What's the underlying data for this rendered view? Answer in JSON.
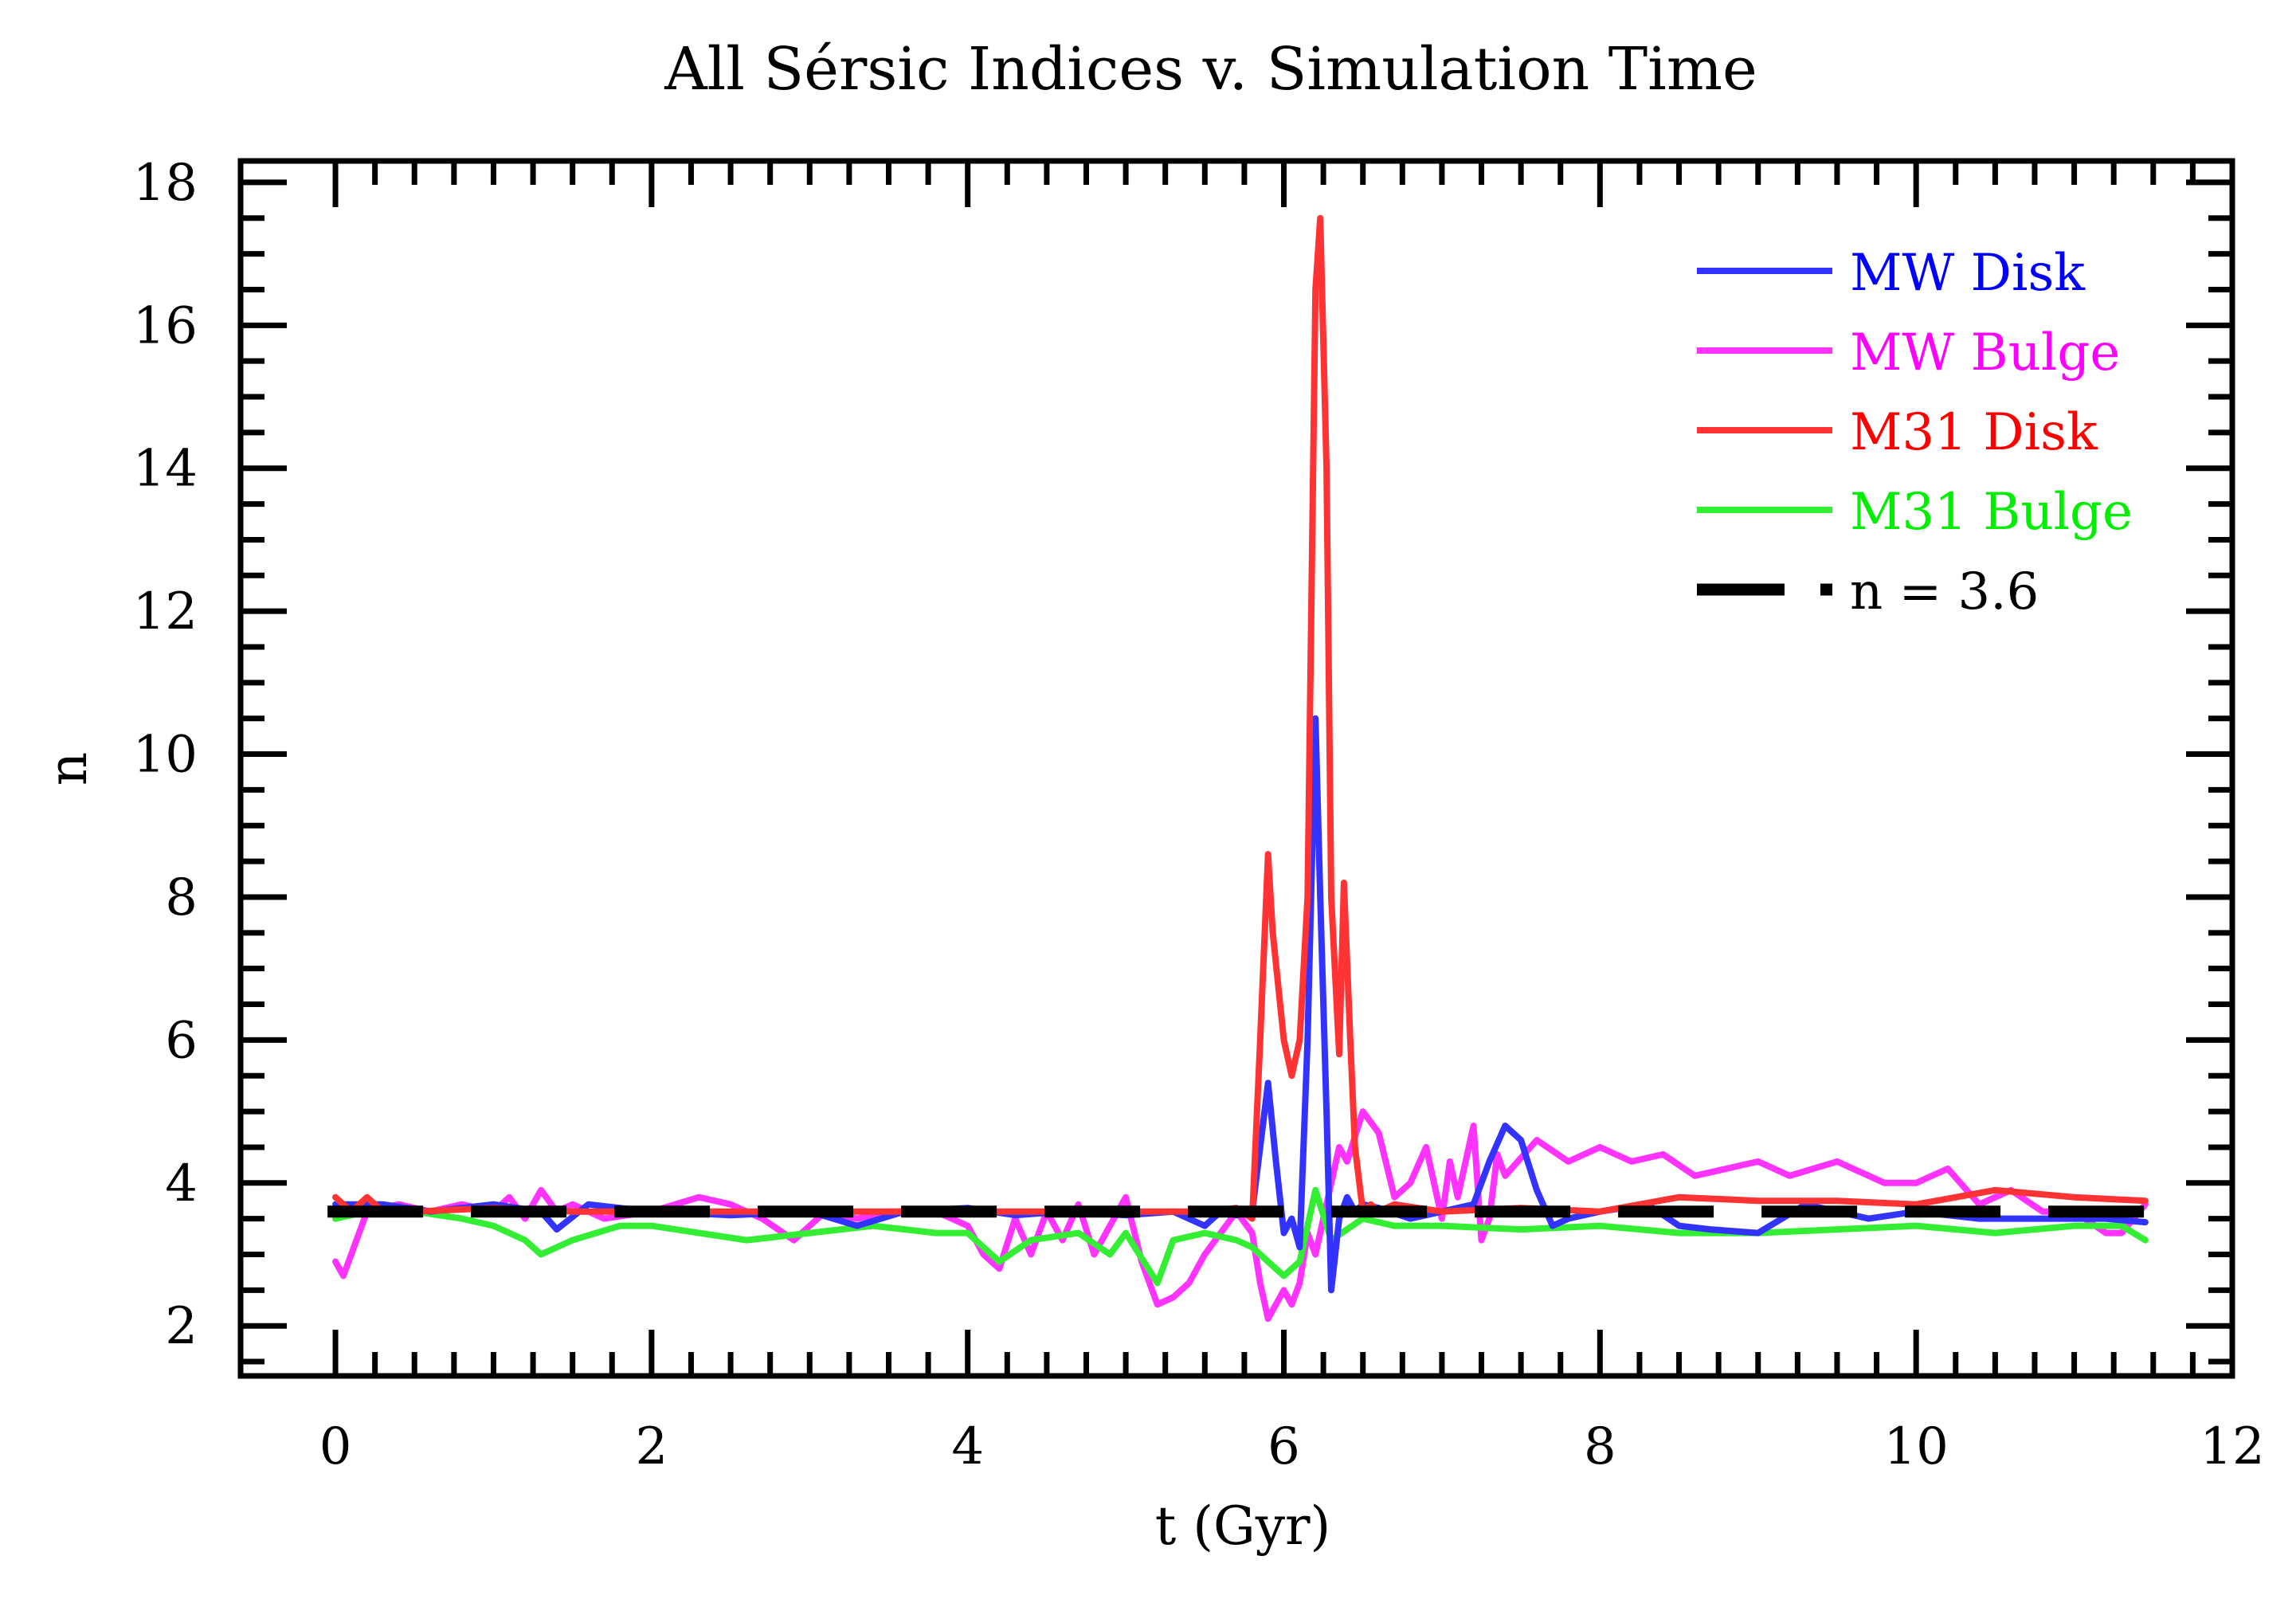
{
  "chart_data": {
    "type": "line",
    "title": "All Sérsic Indices v. Simulation Time",
    "xlabel": "t (Gyr)",
    "ylabel": "n",
    "xlim": [
      -0.6,
      12
    ],
    "ylim": [
      1.3,
      18.3
    ],
    "xticks": [
      0,
      2,
      4,
      6,
      8,
      10,
      12
    ],
    "xtick_labels": [
      "0",
      "2",
      "4",
      "6",
      "8",
      "10",
      "12"
    ],
    "yticks": [
      2,
      4,
      6,
      8,
      10,
      12,
      14,
      16,
      18
    ],
    "ytick_labels": [
      "2",
      "4",
      "6",
      "8",
      "10",
      "12",
      "14",
      "16",
      "18"
    ],
    "grid": false,
    "legend_position": "top-right",
    "series": [
      {
        "name": "MW Disk",
        "color": "#3333ff",
        "label_color": "#0000ff",
        "style": "solid",
        "x": [
          0,
          0.3,
          0.6,
          1.0,
          1.3,
          1.4,
          1.6,
          2.0,
          2.5,
          3.0,
          3.3,
          3.6,
          4.0,
          4.3,
          4.6,
          5.0,
          5.3,
          5.5,
          5.6,
          5.7,
          5.8,
          5.85,
          5.9,
          5.95,
          6.0,
          6.05,
          6.1,
          6.15,
          6.2,
          6.23,
          6.27,
          6.3,
          6.35,
          6.4,
          6.45,
          6.5,
          6.6,
          6.8,
          7.0,
          7.2,
          7.3,
          7.4,
          7.5,
          7.6,
          7.7,
          7.8,
          8.0,
          8.3,
          8.5,
          8.7,
          9.0,
          9.3,
          9.7,
          10.0,
          10.4,
          10.8,
          11.2,
          11.45
        ],
        "y": [
          3.7,
          3.7,
          3.6,
          3.7,
          3.6,
          3.35,
          3.7,
          3.6,
          3.55,
          3.6,
          3.4,
          3.6,
          3.65,
          3.55,
          3.6,
          3.55,
          3.6,
          3.4,
          3.6,
          3.55,
          3.6,
          4.5,
          5.4,
          4.3,
          3.3,
          3.5,
          3.1,
          6.0,
          10.5,
          8.0,
          5.0,
          2.5,
          3.5,
          3.8,
          3.6,
          3.7,
          3.65,
          3.5,
          3.6,
          3.7,
          4.3,
          4.8,
          4.6,
          3.9,
          3.4,
          3.5,
          3.6,
          3.7,
          3.4,
          3.35,
          3.3,
          3.7,
          3.5,
          3.6,
          3.5,
          3.5,
          3.5,
          3.45
        ]
      },
      {
        "name": "MW Bulge",
        "color": "#ff33ff",
        "label_color": "#ff00ff",
        "style": "solid",
        "x": [
          0,
          0.05,
          0.1,
          0.2,
          0.4,
          0.6,
          0.8,
          1.0,
          1.1,
          1.2,
          1.3,
          1.4,
          1.5,
          1.7,
          2.0,
          2.3,
          2.5,
          2.7,
          2.9,
          3.1,
          3.3,
          3.5,
          3.8,
          4.0,
          4.1,
          4.2,
          4.3,
          4.4,
          4.5,
          4.6,
          4.7,
          4.8,
          5.0,
          5.1,
          5.2,
          5.3,
          5.4,
          5.5,
          5.6,
          5.7,
          5.8,
          5.85,
          5.9,
          5.95,
          6.0,
          6.05,
          6.1,
          6.15,
          6.2,
          6.3,
          6.35,
          6.4,
          6.5,
          6.6,
          6.7,
          6.8,
          6.9,
          7.0,
          7.05,
          7.1,
          7.2,
          7.25,
          7.3,
          7.35,
          7.4,
          7.6,
          7.8,
          8.0,
          8.2,
          8.4,
          8.6,
          8.8,
          9.0,
          9.2,
          9.5,
          9.8,
          10.0,
          10.2,
          10.4,
          10.6,
          10.8,
          11.0,
          11.2,
          11.3,
          11.45
        ],
        "y": [
          2.9,
          2.7,
          3.0,
          3.6,
          3.7,
          3.6,
          3.7,
          3.6,
          3.8,
          3.5,
          3.9,
          3.6,
          3.7,
          3.5,
          3.6,
          3.8,
          3.7,
          3.5,
          3.2,
          3.6,
          3.5,
          3.6,
          3.6,
          3.4,
          3.0,
          2.8,
          3.5,
          3.0,
          3.6,
          3.2,
          3.7,
          3.0,
          3.8,
          2.9,
          2.3,
          2.4,
          2.6,
          3.0,
          3.3,
          3.6,
          3.3,
          2.6,
          2.1,
          2.3,
          2.5,
          2.3,
          2.6,
          3.3,
          3.0,
          4.0,
          4.5,
          4.3,
          5.0,
          4.7,
          3.8,
          4.0,
          4.5,
          3.5,
          4.3,
          3.8,
          4.8,
          3.2,
          3.5,
          4.4,
          4.1,
          4.6,
          4.3,
          4.5,
          4.3,
          4.4,
          4.1,
          4.2,
          4.3,
          4.1,
          4.3,
          4.0,
          4.0,
          4.2,
          3.7,
          3.9,
          3.6,
          3.6,
          3.3,
          3.3,
          3.7
        ]
      },
      {
        "name": "M31 Disk",
        "color": "#ff3333",
        "label_color": "#ff0000",
        "style": "solid",
        "x": [
          0,
          0.1,
          0.2,
          0.3,
          0.5,
          1.0,
          1.5,
          2.0,
          3.0,
          4.0,
          5.0,
          5.5,
          5.7,
          5.8,
          5.85,
          5.9,
          5.93,
          6.0,
          6.05,
          6.1,
          6.15,
          6.2,
          6.23,
          6.27,
          6.3,
          6.35,
          6.38,
          6.42,
          6.45,
          6.5,
          6.55,
          6.6,
          6.7,
          7.0,
          7.5,
          8.0,
          8.5,
          9.0,
          9.5,
          10.0,
          10.5,
          11.0,
          11.45
        ],
        "y": [
          3.8,
          3.6,
          3.8,
          3.6,
          3.6,
          3.65,
          3.6,
          3.6,
          3.6,
          3.6,
          3.6,
          3.6,
          3.65,
          3.5,
          6.0,
          8.6,
          7.5,
          6.0,
          5.5,
          6.0,
          8.0,
          16.5,
          17.5,
          14.0,
          8.0,
          5.8,
          8.2,
          6.0,
          4.5,
          3.6,
          3.7,
          3.6,
          3.7,
          3.6,
          3.65,
          3.6,
          3.8,
          3.75,
          3.75,
          3.7,
          3.9,
          3.8,
          3.75
        ]
      },
      {
        "name": "M31 Bulge",
        "color": "#33ee33",
        "label_color": "#00ee00",
        "style": "solid",
        "x": [
          0,
          0.2,
          0.5,
          0.8,
          1.0,
          1.2,
          1.3,
          1.5,
          1.8,
          2.0,
          2.3,
          2.6,
          3.0,
          3.4,
          3.8,
          4.0,
          4.2,
          4.4,
          4.7,
          4.9,
          5.0,
          5.2,
          5.3,
          5.5,
          5.7,
          5.8,
          5.9,
          6.0,
          6.1,
          6.2,
          6.3,
          6.5,
          6.7,
          7.0,
          7.5,
          8.0,
          8.5,
          9.0,
          9.5,
          10.0,
          10.5,
          11.0,
          11.3,
          11.45
        ],
        "y": [
          3.5,
          3.6,
          3.6,
          3.5,
          3.4,
          3.2,
          3.0,
          3.2,
          3.4,
          3.4,
          3.3,
          3.2,
          3.3,
          3.4,
          3.3,
          3.3,
          2.9,
          3.2,
          3.3,
          3.0,
          3.3,
          2.6,
          3.2,
          3.3,
          3.2,
          3.1,
          2.9,
          2.7,
          2.9,
          3.9,
          3.2,
          3.5,
          3.4,
          3.4,
          3.35,
          3.4,
          3.3,
          3.3,
          3.35,
          3.4,
          3.3,
          3.4,
          3.4,
          3.2
        ]
      },
      {
        "name": "n = 3.6",
        "color": "#000000",
        "label_color": "#000000",
        "style": "dashed",
        "x": [
          -0.05,
          11.5
        ],
        "y": [
          3.6,
          3.6
        ]
      }
    ]
  }
}
